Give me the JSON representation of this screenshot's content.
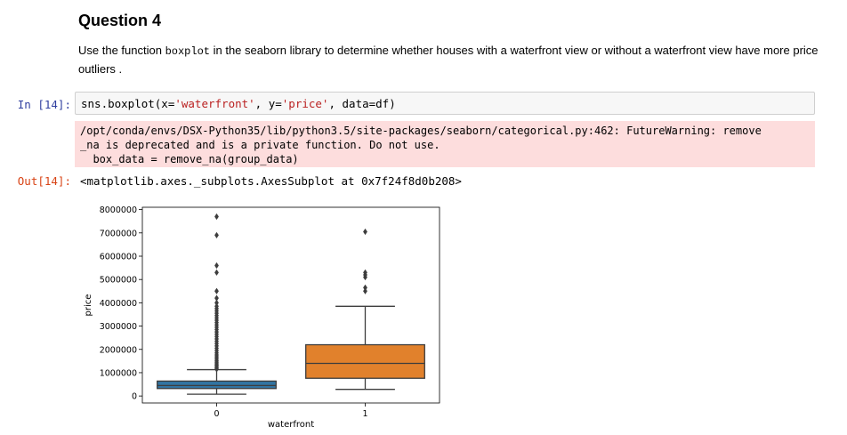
{
  "markdown": {
    "heading": "Question 4",
    "para_before": "Use the function ",
    "para_code": "boxplot",
    "para_after": " in the seaborn library to determine whether houses with a waterfront view or without a waterfront view have more price outliers ."
  },
  "cell": {
    "in_prompt": "In [14]:",
    "out_prompt": "Out[14]:",
    "code_tokens": [
      {
        "t": "sns.boxplot(x=",
        "c": ""
      },
      {
        "t": "'waterfront'",
        "c": "str"
      },
      {
        "t": ", y=",
        "c": ""
      },
      {
        "t": "'price'",
        "c": "str"
      },
      {
        "t": ", data=df)",
        "c": ""
      }
    ],
    "stderr_lines": [
      "/opt/conda/envs/DSX-Python35/lib/python3.5/site-packages/seaborn/categorical.py:462: FutureWarning: remove",
      "_na is deprecated and is a private function. Do not use.",
      "  box_data = remove_na(group_data)"
    ],
    "output_text": "<matplotlib.axes._subplots.AxesSubplot at 0x7f24f8d0b208>"
  },
  "chart_data": {
    "type": "box",
    "xlabel": "waterfront",
    "ylabel": "price",
    "categories": [
      "0",
      "1"
    ],
    "ylim": [
      -300000,
      8100000
    ],
    "yticks": [
      0,
      1000000,
      2000000,
      3000000,
      4000000,
      5000000,
      6000000,
      7000000,
      8000000
    ],
    "yticklabels": [
      "0",
      "1000000",
      "2000000",
      "3000000",
      "4000000",
      "5000000",
      "6000000",
      "7000000",
      "8000000"
    ],
    "boxes": [
      {
        "category": "0",
        "color": "#3274a1",
        "whisker_low": 78000,
        "q1": 320000,
        "median": 450000,
        "q3": 640000,
        "whisker_high": 1130000,
        "outliers": [
          1150000,
          1200000,
          1260000,
          1320000,
          1380000,
          1450000,
          1520000,
          1600000,
          1680000,
          1760000,
          1850000,
          1950000,
          2050000,
          2150000,
          2250000,
          2350000,
          2450000,
          2550000,
          2650000,
          2750000,
          2850000,
          2950000,
          3050000,
          3150000,
          3250000,
          3350000,
          3450000,
          3550000,
          3650000,
          3750000,
          3850000,
          4000000,
          4200000,
          4500000,
          5300000,
          5600000,
          6900000,
          7700000
        ]
      },
      {
        "category": "1",
        "color": "#e1812c",
        "whisker_low": 285000,
        "q1": 760000,
        "median": 1400000,
        "q3": 2200000,
        "whisker_high": 3850000,
        "outliers": [
          4500000,
          4650000,
          5100000,
          5200000,
          5300000,
          7050000
        ]
      }
    ]
  }
}
